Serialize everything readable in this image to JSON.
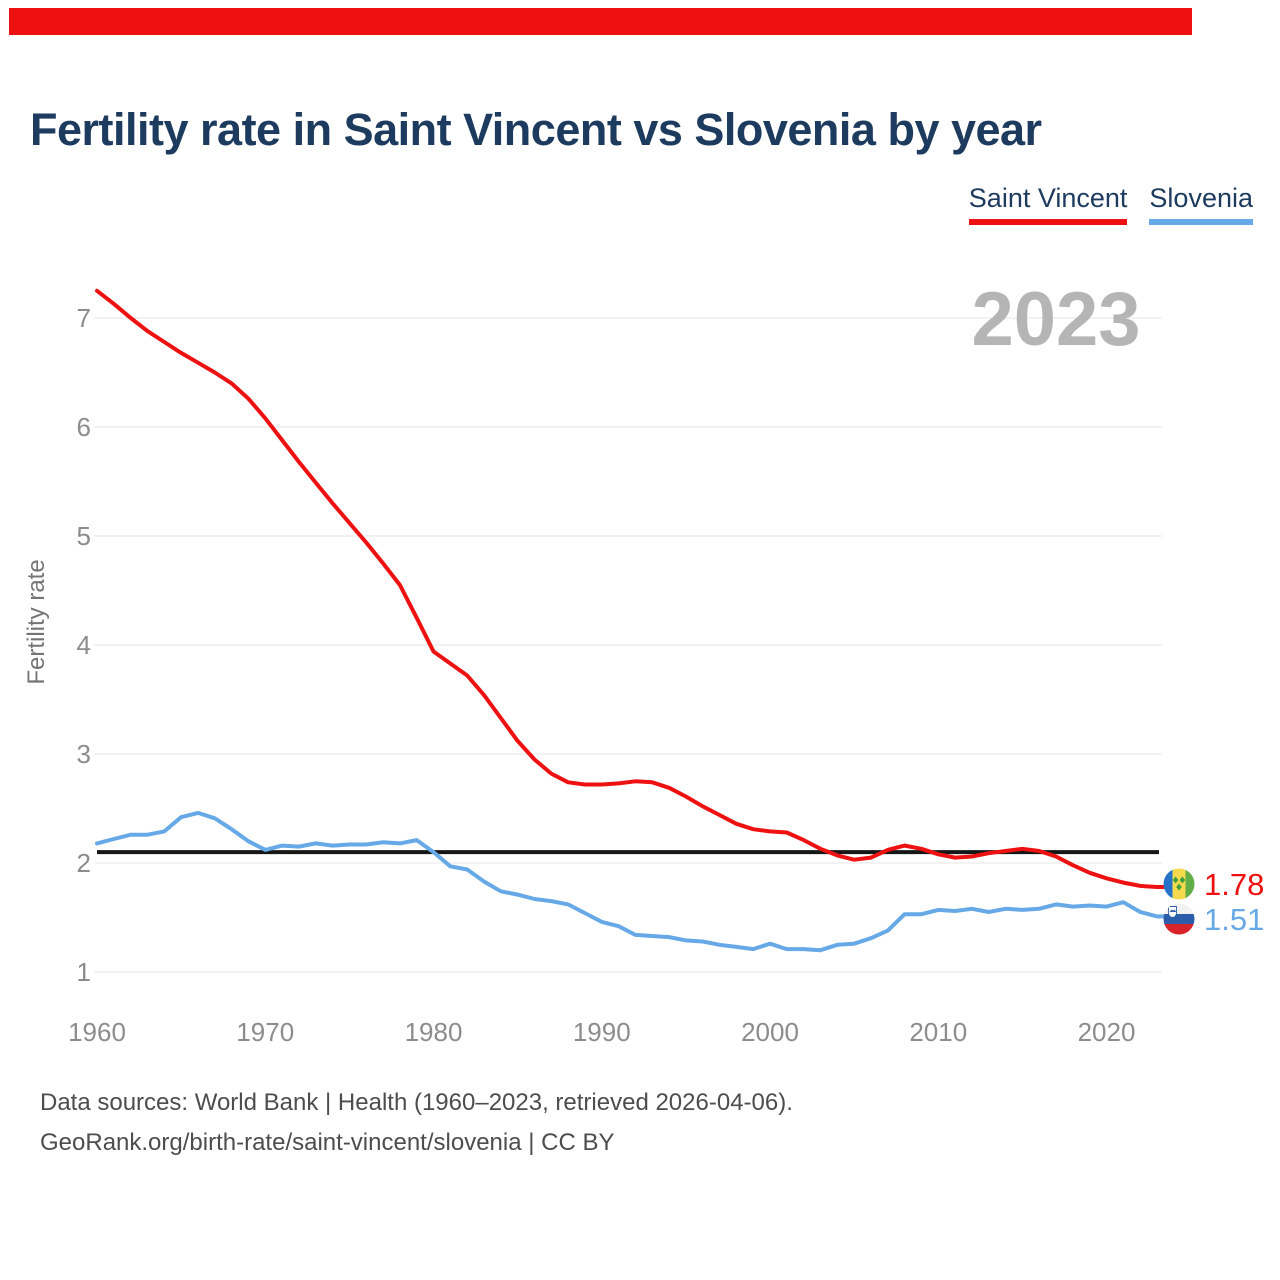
{
  "page": {
    "accent_color": "#ee1111",
    "background": "#ffffff"
  },
  "header": {
    "title": "Fertility rate in Saint Vincent vs Slovenia by year"
  },
  "legend": {
    "items": [
      {
        "label": "Saint Vincent",
        "color": "#ee1111"
      },
      {
        "label": "Slovenia",
        "color": "#66a9e6"
      }
    ]
  },
  "watermark": {
    "text": "2023"
  },
  "chart_data": {
    "type": "line",
    "title": "Fertility rate in Saint Vincent vs Slovenia by year",
    "xlabel": "",
    "ylabel": "Fertility rate",
    "xlim": [
      1960,
      2023
    ],
    "ylim": [
      0.7,
      7.4
    ],
    "grid": true,
    "x_ticks": [
      1960,
      1970,
      1980,
      1990,
      2000,
      2010,
      2020
    ],
    "y_ticks": [
      1,
      2,
      3,
      4,
      5,
      6,
      7
    ],
    "x": [
      1960,
      1961,
      1962,
      1963,
      1964,
      1965,
      1966,
      1967,
      1968,
      1969,
      1970,
      1971,
      1972,
      1973,
      1974,
      1975,
      1976,
      1977,
      1978,
      1979,
      1980,
      1981,
      1982,
      1983,
      1984,
      1985,
      1986,
      1987,
      1988,
      1989,
      1990,
      1991,
      1992,
      1993,
      1994,
      1995,
      1996,
      1997,
      1998,
      1999,
      2000,
      2001,
      2002,
      2003,
      2004,
      2005,
      2006,
      2007,
      2008,
      2009,
      2010,
      2011,
      2012,
      2013,
      2014,
      2015,
      2016,
      2017,
      2018,
      2019,
      2020,
      2021,
      2022,
      2023
    ],
    "series": [
      {
        "name": "Saint Vincent",
        "color": "#ee1111",
        "values": [
          7.25,
          7.13,
          7.0,
          6.88,
          6.78,
          6.68,
          6.59,
          6.5,
          6.4,
          6.26,
          6.08,
          5.88,
          5.68,
          5.49,
          5.3,
          5.12,
          4.94,
          4.75,
          4.55,
          4.25,
          3.94,
          3.83,
          3.72,
          3.54,
          3.33,
          3.12,
          2.95,
          2.82,
          2.74,
          2.72,
          2.72,
          2.73,
          2.75,
          2.74,
          2.69,
          2.61,
          2.52,
          2.44,
          2.36,
          2.31,
          2.29,
          2.28,
          2.21,
          2.13,
          2.07,
          2.03,
          2.05,
          2.12,
          2.16,
          2.13,
          2.08,
          2.05,
          2.06,
          2.09,
          2.11,
          2.13,
          2.11,
          2.06,
          1.98,
          1.91,
          1.86,
          1.82,
          1.79,
          1.78
        ]
      },
      {
        "name": "Slovenia",
        "color": "#66a9e6",
        "values": [
          2.18,
          2.22,
          2.26,
          2.26,
          2.29,
          2.42,
          2.46,
          2.41,
          2.31,
          2.2,
          2.12,
          2.16,
          2.15,
          2.18,
          2.16,
          2.17,
          2.17,
          2.19,
          2.18,
          2.21,
          2.1,
          1.97,
          1.94,
          1.83,
          1.74,
          1.71,
          1.67,
          1.65,
          1.62,
          1.54,
          1.46,
          1.42,
          1.34,
          1.33,
          1.32,
          1.29,
          1.28,
          1.25,
          1.23,
          1.21,
          1.26,
          1.21,
          1.21,
          1.2,
          1.25,
          1.26,
          1.31,
          1.38,
          1.53,
          1.53,
          1.57,
          1.56,
          1.58,
          1.55,
          1.58,
          1.57,
          1.58,
          1.62,
          1.6,
          1.61,
          1.6,
          1.64,
          1.55,
          1.51
        ]
      }
    ],
    "reference_line": {
      "value": 2.1,
      "color": "#161616"
    },
    "end_labels": [
      {
        "series": "Saint Vincent",
        "text": "1.78",
        "flag": "saint-vincent"
      },
      {
        "series": "Slovenia",
        "text": "1.51",
        "flag": "slovenia"
      }
    ],
    "legend_position": "top-right"
  },
  "footer": {
    "line1": "Data sources: World Bank | Health (1960–2023, retrieved 2026-04-06).",
    "line2": "GeoRank.org/birth-rate/saint-vincent/slovenia | CC BY"
  }
}
